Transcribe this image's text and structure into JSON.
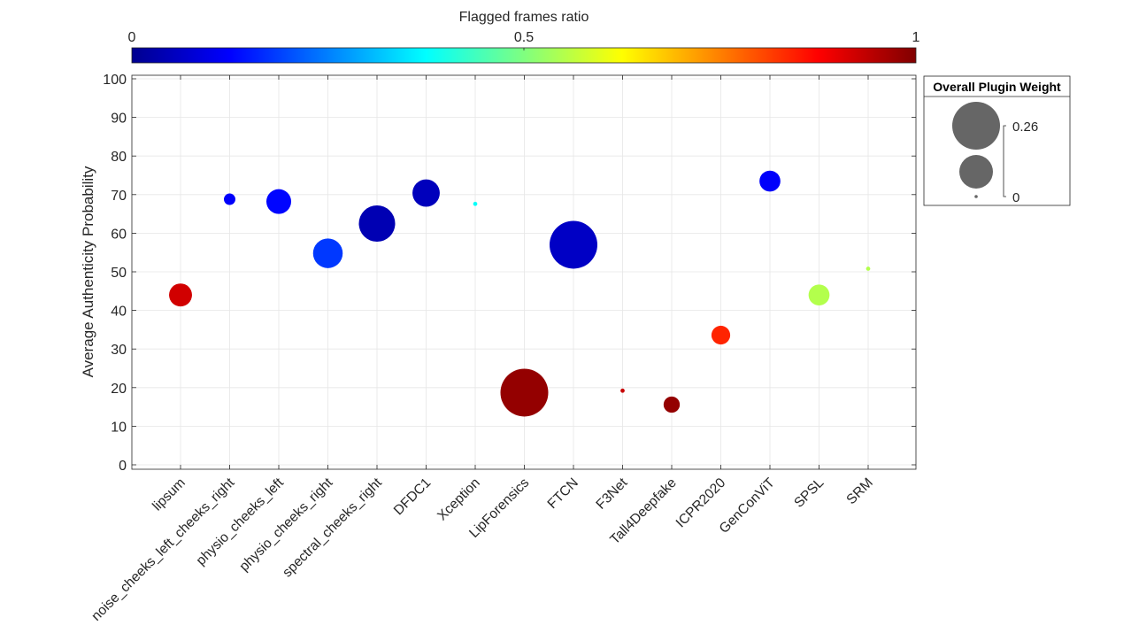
{
  "chart_data": {
    "type": "scatter",
    "ylabel": "Average Authenticity Probability",
    "xlabel": "",
    "ylim": [
      0,
      100
    ],
    "yticks": [
      0,
      10,
      20,
      30,
      40,
      50,
      60,
      70,
      80,
      90,
      100
    ],
    "grid": true,
    "categories": [
      "lipsum",
      "noise_cheeks_left_cheeks_right",
      "physio_cheeks_left",
      "physio_cheeks_right",
      "spectral_cheeks_right",
      "DFDC1",
      "Xception",
      "LipForensics",
      "FTCN",
      "F3Net",
      "Tall4Deepfake",
      "ICPR2020",
      "GenConViT",
      "SPSL",
      "SRM"
    ],
    "points": [
      {
        "category": "lipsum",
        "y": 44.0,
        "flagged_ratio": 0.92,
        "weight": 0.06
      },
      {
        "category": "noise_cheeks_left_cheeks_right",
        "y": 68.8,
        "flagged_ratio": 0.12,
        "weight": 0.015
      },
      {
        "category": "physio_cheeks_left",
        "y": 68.2,
        "flagged_ratio": 0.13,
        "weight": 0.07
      },
      {
        "category": "physio_cheeks_right",
        "y": 54.8,
        "flagged_ratio": 0.18,
        "weight": 0.1
      },
      {
        "category": "spectral_cheeks_right",
        "y": 62.5,
        "flagged_ratio": 0.04,
        "weight": 0.15
      },
      {
        "category": "DFDC1",
        "y": 70.4,
        "flagged_ratio": 0.05,
        "weight": 0.085
      },
      {
        "category": "Xception",
        "y": 67.6,
        "flagged_ratio": 0.38,
        "weight": 0.002
      },
      {
        "category": "LipForensics",
        "y": 18.7,
        "flagged_ratio": 0.98,
        "weight": 0.26
      },
      {
        "category": "FTCN",
        "y": 57.0,
        "flagged_ratio": 0.06,
        "weight": 0.26
      },
      {
        "category": "F3Net",
        "y": 19.2,
        "flagged_ratio": 0.93,
        "weight": 0.002
      },
      {
        "category": "Tall4Deepfake",
        "y": 15.6,
        "flagged_ratio": 0.98,
        "weight": 0.03
      },
      {
        "category": "ICPR2020",
        "y": 33.6,
        "flagged_ratio": 0.84,
        "weight": 0.04
      },
      {
        "category": "GenConViT",
        "y": 73.5,
        "flagged_ratio": 0.12,
        "weight": 0.05
      },
      {
        "category": "SPSL",
        "y": 44.0,
        "flagged_ratio": 0.55,
        "weight": 0.05
      },
      {
        "category": "SRM",
        "y": 50.8,
        "flagged_ratio": 0.55,
        "weight": 0.002
      }
    ],
    "colorbar": {
      "label": "Flagged frames ratio",
      "range": [
        0,
        1
      ],
      "ticks": [
        "0",
        "0.5",
        "1"
      ],
      "colormap": "jet",
      "placement": "top"
    },
    "size_legend": {
      "title": "Overall Plugin Weight",
      "labels": [
        "0.26",
        "0"
      ],
      "placement": "right",
      "color": "#666666"
    }
  }
}
